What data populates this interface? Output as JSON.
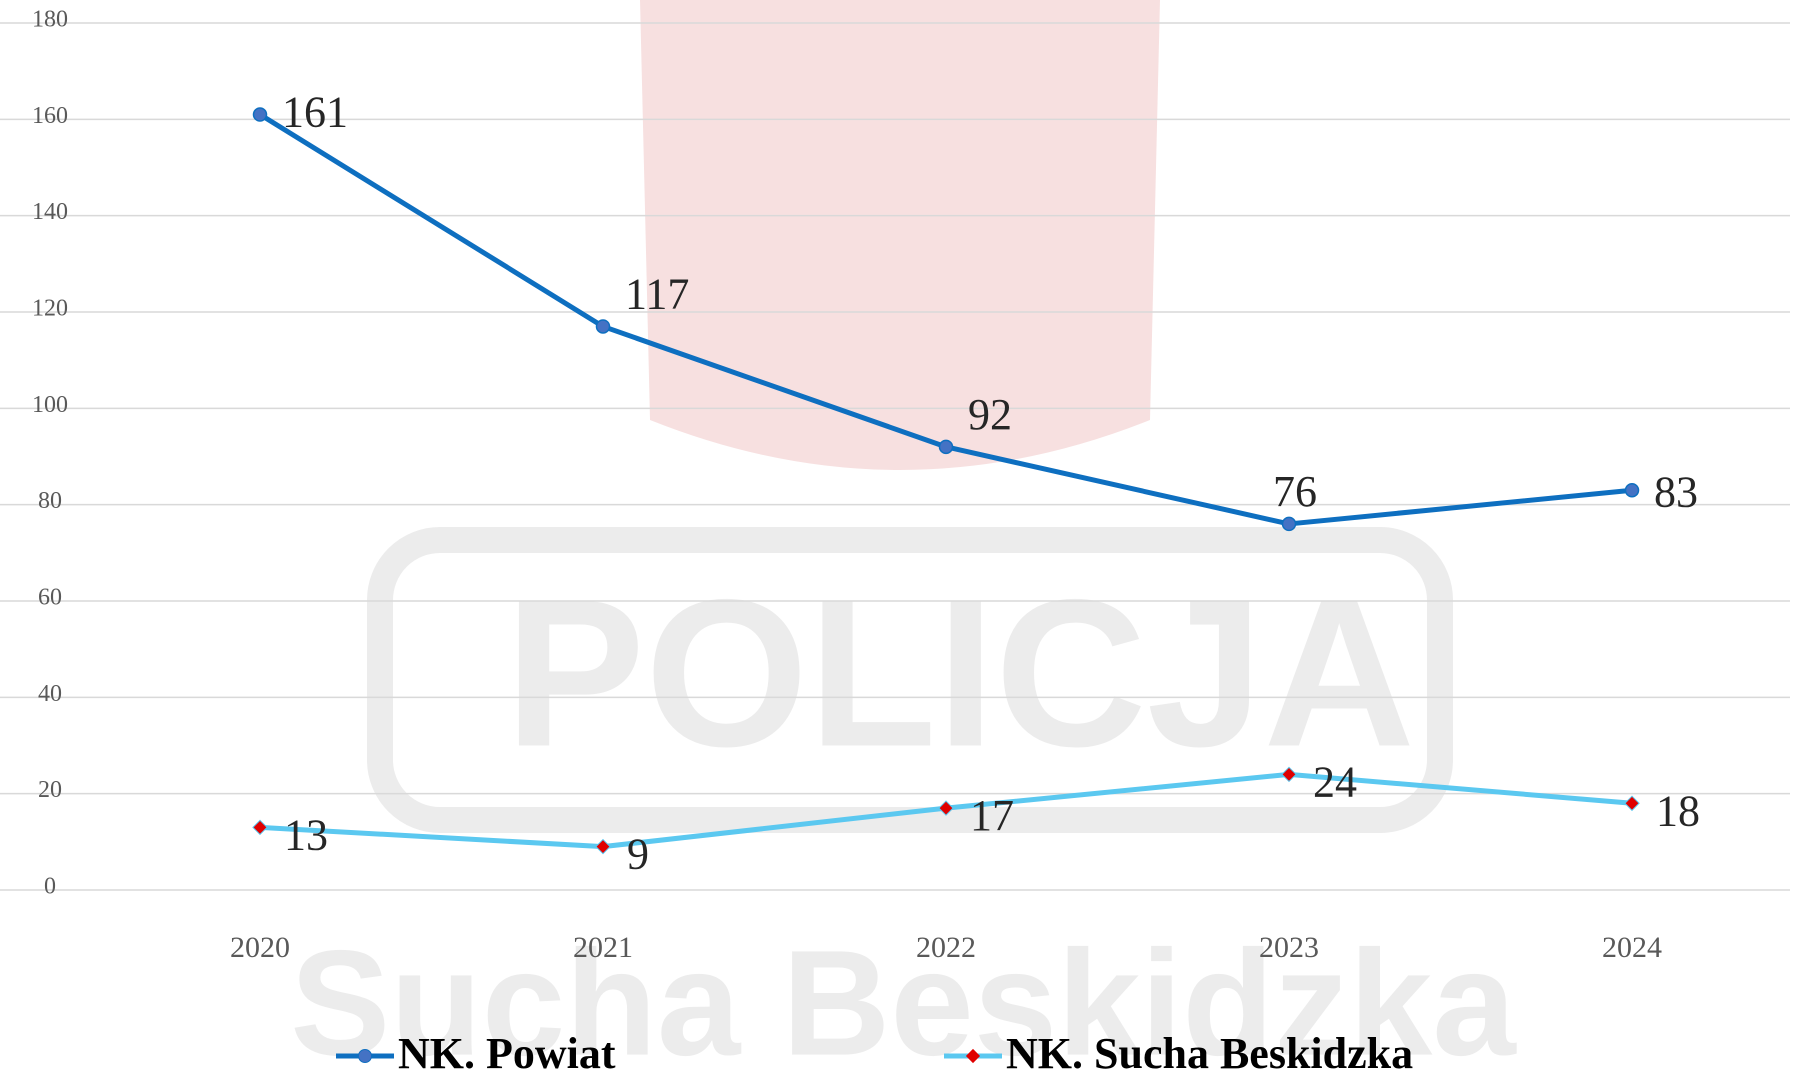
{
  "chart_data": {
    "type": "line",
    "categories": [
      "2020",
      "2021",
      "2022",
      "2023",
      "2024"
    ],
    "series": [
      {
        "name": "NK. Powiat",
        "color": "#0e6fc0",
        "marker": "circle",
        "marker_color": "#4472c4",
        "values": [
          161,
          117,
          92,
          76,
          83
        ]
      },
      {
        "name": "NK. Sucha Beskidzka",
        "color": "#5bc8f0",
        "marker": "diamond",
        "marker_color": "#e00000",
        "values": [
          13,
          9,
          17,
          24,
          18
        ]
      }
    ],
    "ylim": [
      0,
      180
    ],
    "yticks": [
      0,
      20,
      40,
      60,
      80,
      100,
      120,
      140,
      160,
      180
    ],
    "grid": true,
    "legend": "bottom",
    "watermark": [
      "POLICJA",
      "Sucha Beskidzka"
    ]
  }
}
